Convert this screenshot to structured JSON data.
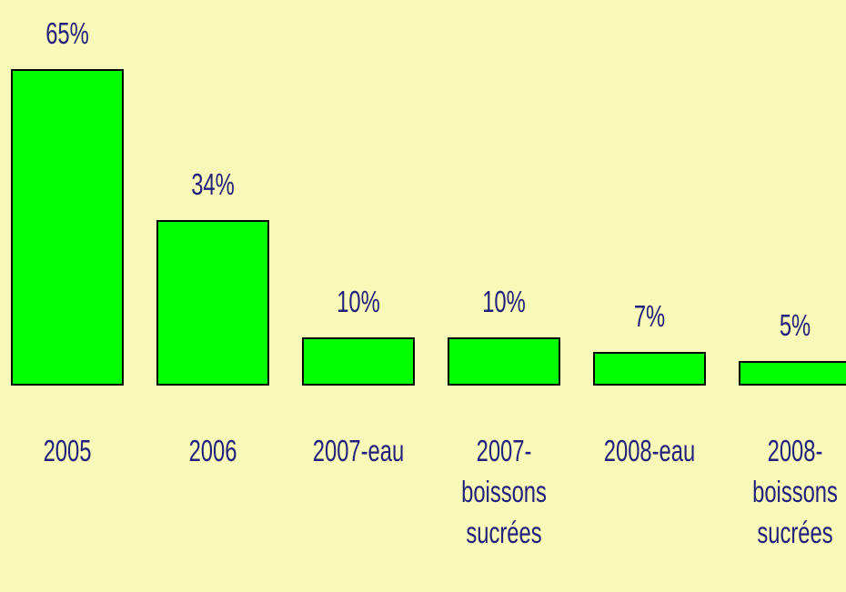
{
  "chart_data": {
    "type": "bar",
    "categories": [
      "2005",
      "2006",
      "2007-eau",
      "2007-boissons sucrées",
      "2008-eau",
      "2008-boissons sucrées"
    ],
    "values": [
      65,
      34,
      10,
      10,
      7,
      5
    ],
    "value_labels": [
      "65%",
      "34%",
      "10%",
      "10%",
      "7%",
      "5%"
    ],
    "color": "#00ff00"
  }
}
